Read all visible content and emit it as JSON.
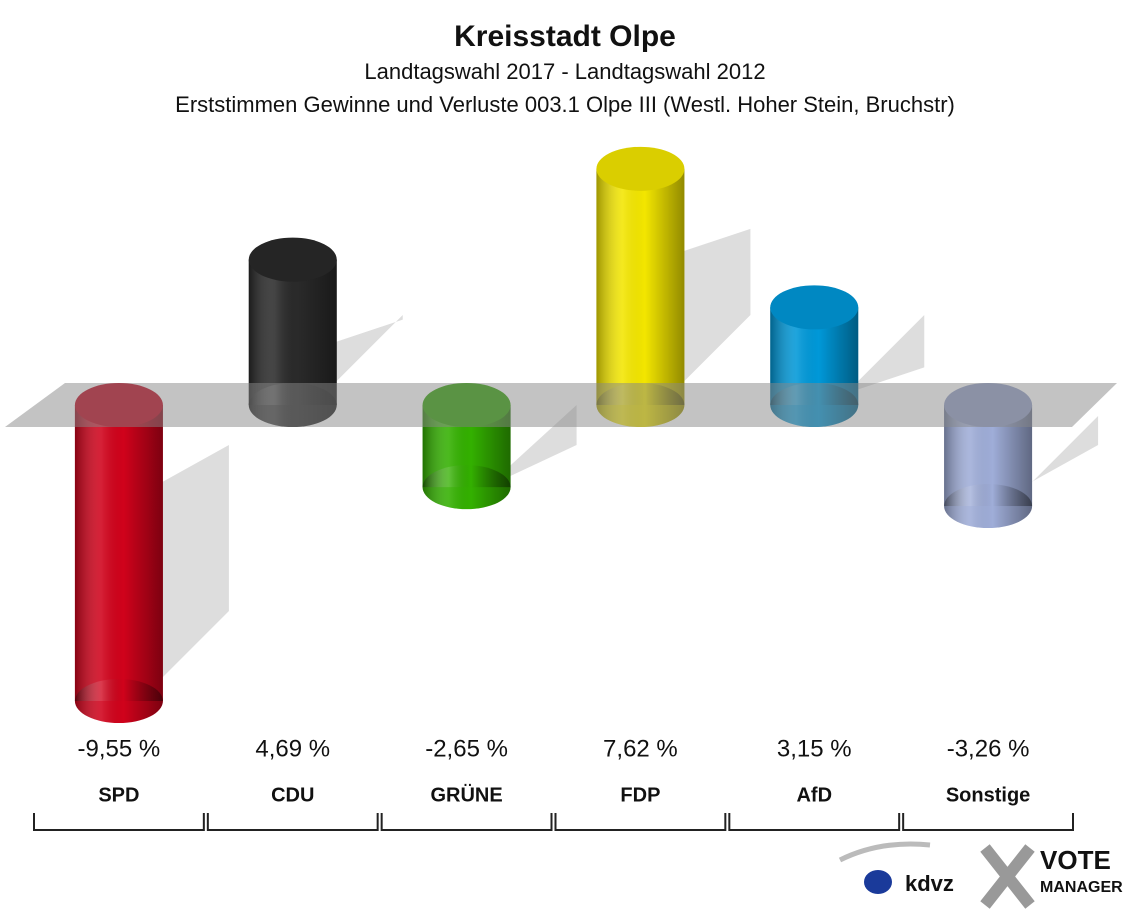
{
  "chart_data": {
    "type": "bar",
    "title": "Kreisstadt Olpe",
    "subtitle": "Landtagswahl 2017 - Landtagswahl 2012",
    "subtitle2": "Erststimmen Gewinne und Verluste 003.1 Olpe III (Westl. Hoher Stein, Bruchstr)",
    "categories": [
      "SPD",
      "CDU",
      "GRÜNE",
      "FDP",
      "AfD",
      "Sonstige"
    ],
    "values": [
      -9.55,
      4.69,
      -2.65,
      7.62,
      3.15,
      -3.26
    ],
    "value_labels": [
      "-9,55 %",
      "4,69 %",
      "-2,65 %",
      "7,62 %",
      "3,15 %",
      "-3,26 %"
    ],
    "colors": [
      "#d0021b",
      "#2a2a2a",
      "#33b000",
      "#f3e600",
      "#0098d8",
      "#9fadd8"
    ],
    "logo": {
      "left": "kdvz",
      "right_top": "VOTE",
      "right_bottom": "MANAGER"
    }
  }
}
